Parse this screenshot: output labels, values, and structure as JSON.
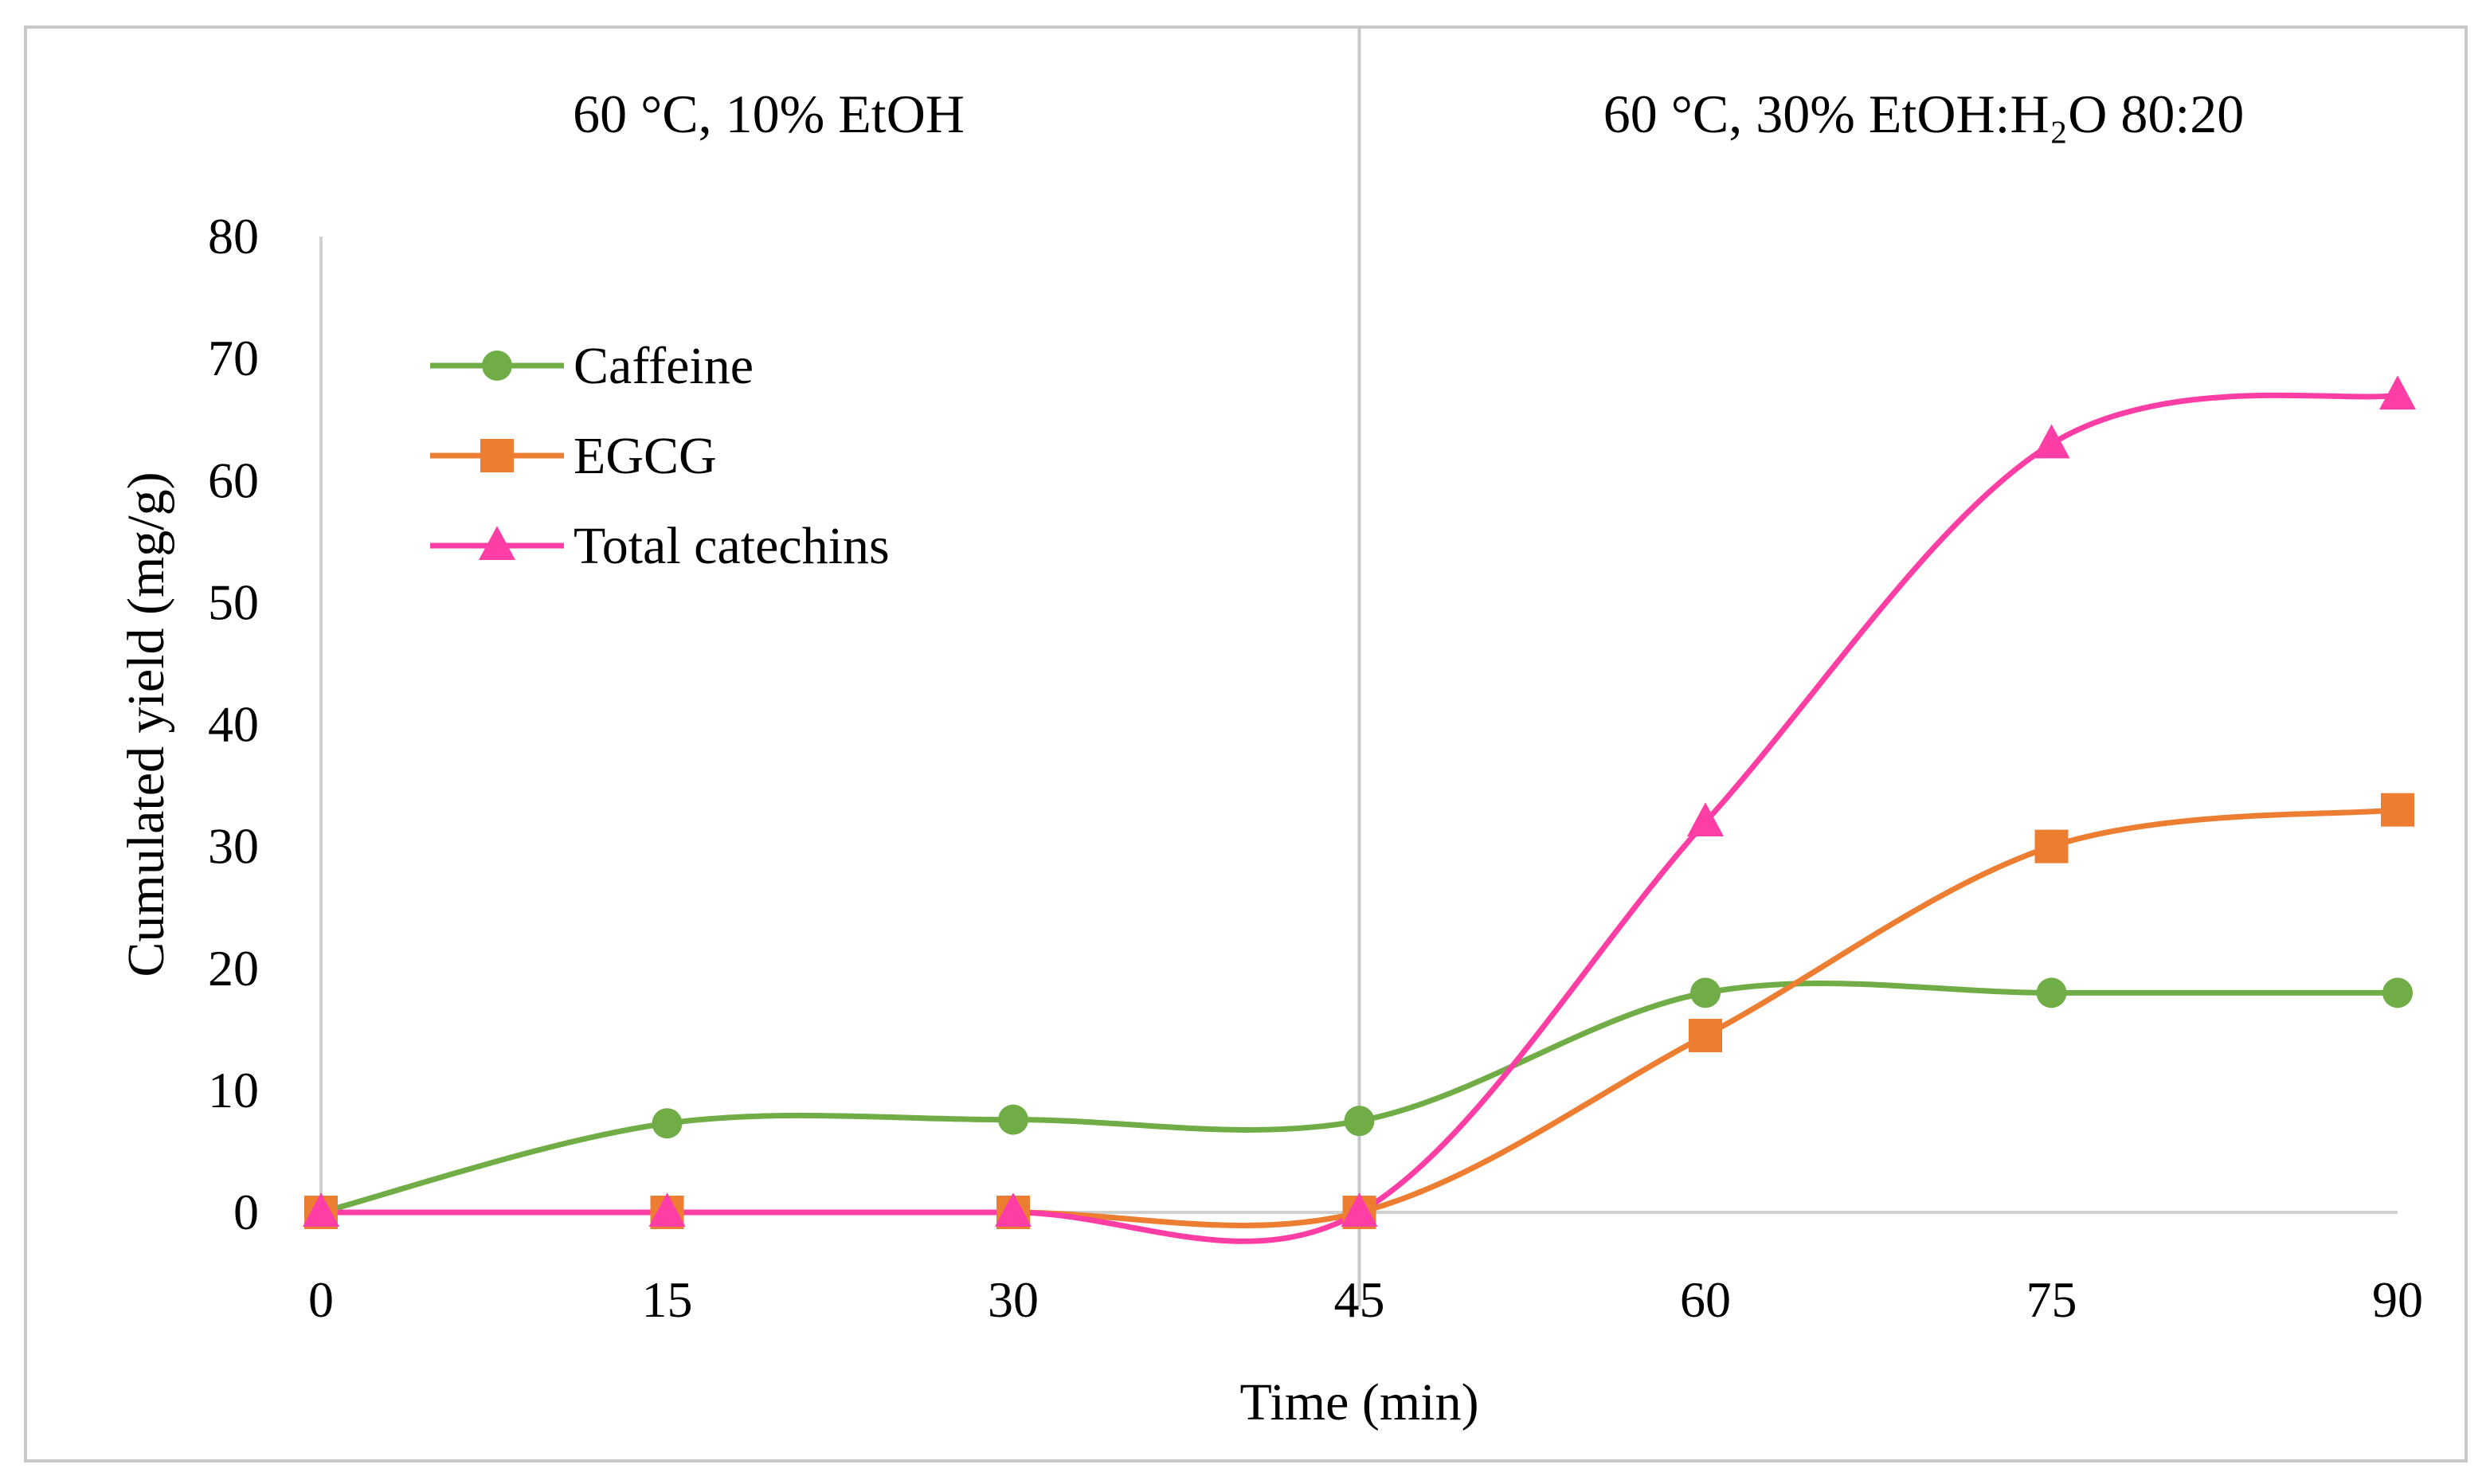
{
  "chart_data": {
    "type": "line",
    "title": "",
    "xlabel": "Time (min)",
    "ylabel": "Cumulated yield (mg/g)",
    "x": [
      0,
      15,
      30,
      45,
      60,
      75,
      90
    ],
    "x_tick_labels": [
      "0",
      "15",
      "30",
      "45",
      "60",
      "75",
      "90"
    ],
    "xlim": [
      0,
      90
    ],
    "ylim": [
      0,
      80
    ],
    "y_ticks": [
      0,
      10,
      20,
      30,
      40,
      50,
      60,
      70,
      80
    ],
    "y_tick_labels": [
      "0",
      "10",
      "20",
      "30",
      "40",
      "50",
      "60",
      "70",
      "80"
    ],
    "grid": false,
    "legend_position": "top-left",
    "divider_x": 45,
    "phases": [
      {
        "label": "60 °C, 10% EtOH",
        "x_start": 0,
        "x_end": 45
      },
      {
        "label": "60 °C, 30% EtOH:H₂O 80:20",
        "x_start": 45,
        "x_end": 90
      }
    ],
    "series": [
      {
        "name": "Caffeine",
        "marker": "circle",
        "color": "#70ad47",
        "values": [
          0,
          7.3,
          7.6,
          7.5,
          18.0,
          18.0,
          18.0
        ]
      },
      {
        "name": "EGCG",
        "marker": "square",
        "color": "#ed7d31",
        "values": [
          0,
          0,
          0,
          0,
          14.5,
          30.0,
          33.0
        ]
      },
      {
        "name": "Total catechins",
        "marker": "triangle",
        "color": "#ff3ea5",
        "values": [
          0,
          0,
          0,
          0,
          32.0,
          63.0,
          67.0
        ]
      }
    ]
  }
}
